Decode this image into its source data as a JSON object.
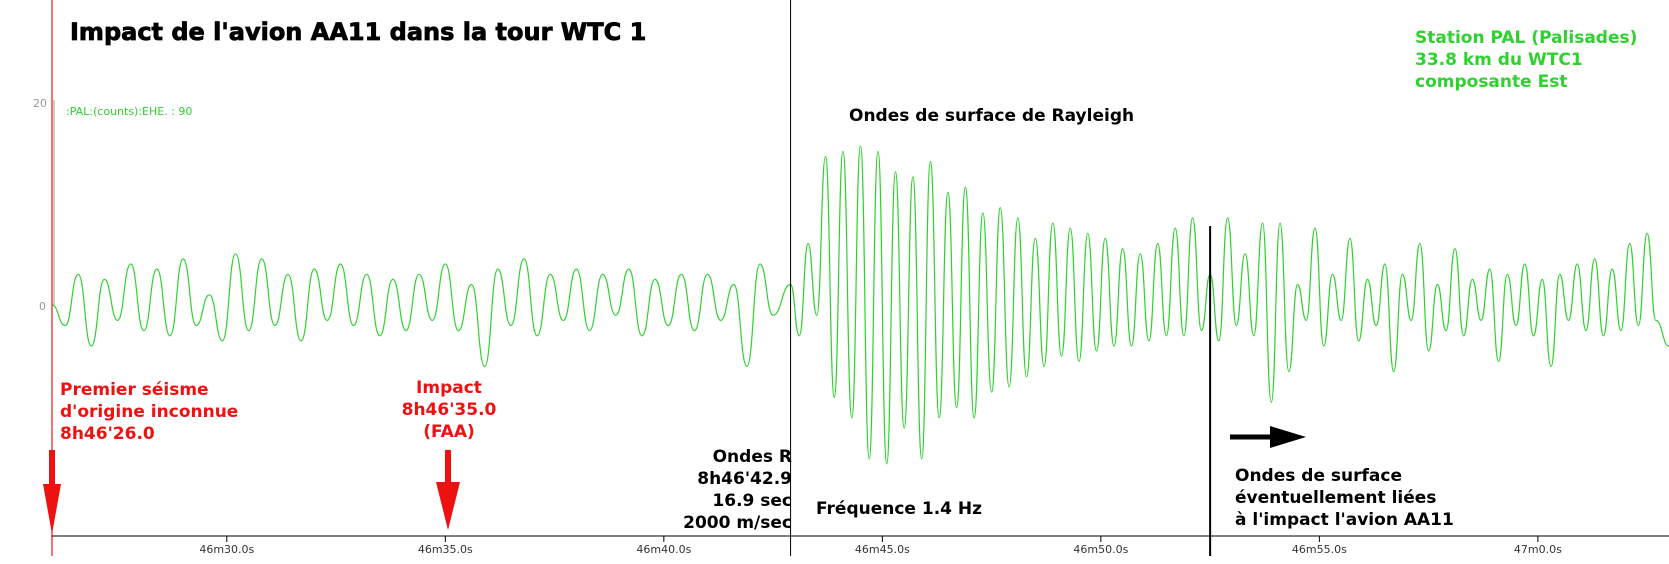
{
  "chart_data": {
    "type": "line",
    "title": "Impact de l'avion AA11 dans la tour WTC 1",
    "station": [
      "Station PAL (Palisades)",
      "33.8 km du WTC1",
      "composante Est"
    ],
    "channel_label": ":PAL:(counts):EHE. : 90",
    "xlabel": "",
    "ylabel": "",
    "x_ticks": [
      "46m30.0s",
      "46m35.0s",
      "46m40.0s",
      "46m45.0s",
      "46m50.0s",
      "46m55.0s",
      "47m0.0s"
    ],
    "x_tick_seconds": [
      30,
      35,
      40,
      45,
      50,
      55,
      60
    ],
    "xlim_seconds": [
      26.0,
      63.0
    ],
    "y_ticks": [
      "20",
      "0"
    ],
    "y_tick_values": [
      20,
      0
    ],
    "ylim": [
      -22,
      30
    ],
    "series": [
      {
        "name": "",
        "color": "#2fd12f",
        "x_seconds": [
          26.0,
          26.3,
          26.6,
          26.9,
          27.2,
          27.5,
          27.8,
          28.1,
          28.4,
          28.7,
          29.0,
          29.3,
          29.6,
          29.9,
          30.2,
          30.5,
          30.8,
          31.1,
          31.4,
          31.7,
          32.0,
          32.3,
          32.6,
          32.9,
          33.2,
          33.5,
          33.8,
          34.1,
          34.4,
          34.7,
          35.0,
          35.3,
          35.6,
          35.9,
          36.2,
          36.5,
          36.8,
          37.1,
          37.4,
          37.7,
          38.0,
          38.3,
          38.6,
          38.9,
          39.2,
          39.5,
          39.8,
          40.1,
          40.4,
          40.7,
          41.0,
          41.3,
          41.6,
          41.9,
          42.2,
          42.5,
          42.9,
          43.1,
          43.3,
          43.5,
          43.7,
          43.9,
          44.1,
          44.3,
          44.5,
          44.7,
          44.9,
          45.1,
          45.3,
          45.5,
          45.7,
          45.9,
          46.1,
          46.3,
          46.5,
          46.7,
          46.9,
          47.1,
          47.3,
          47.5,
          47.7,
          47.9,
          48.1,
          48.3,
          48.5,
          48.7,
          48.9,
          49.1,
          49.3,
          49.5,
          49.7,
          49.9,
          50.1,
          50.3,
          50.5,
          50.7,
          50.9,
          51.1,
          51.3,
          51.5,
          51.7,
          51.9,
          52.1,
          52.3,
          52.5,
          52.7,
          52.9,
          53.1,
          53.3,
          53.5,
          53.7,
          53.9,
          54.1,
          54.3,
          54.5,
          54.7,
          54.9,
          55.1,
          55.3,
          55.5,
          55.7,
          55.9,
          56.1,
          56.3,
          56.5,
          56.7,
          56.9,
          57.1,
          57.3,
          57.5,
          57.7,
          57.9,
          58.1,
          58.3,
          58.5,
          58.7,
          58.9,
          59.1,
          59.3,
          59.5,
          59.7,
          59.9,
          60.1,
          60.3,
          60.5,
          60.7,
          60.9,
          61.1,
          61.3,
          61.5,
          61.7,
          61.9,
          62.1,
          62.3,
          62.5,
          62.7,
          63.0
        ],
        "values": [
          0.0,
          -2.0,
          3.0,
          -4.0,
          2.5,
          -1.5,
          4.0,
          -2.5,
          3.5,
          -3.0,
          4.5,
          -2.0,
          1.0,
          -3.5,
          5.0,
          -2.5,
          4.5,
          -2.0,
          3.0,
          -3.5,
          3.5,
          -1.5,
          4.0,
          -2.0,
          3.0,
          -3.0,
          2.5,
          -2.5,
          3.0,
          -1.5,
          4.0,
          -2.5,
          2.0,
          -6.0,
          3.5,
          -2.0,
          4.5,
          -3.0,
          3.0,
          -1.5,
          3.5,
          -2.5,
          3.0,
          -1.0,
          3.5,
          -3.0,
          2.5,
          -2.0,
          3.0,
          -2.5,
          3.0,
          -1.5,
          2.0,
          -6.0,
          4.0,
          -1.0,
          2.0,
          -3.0,
          6.0,
          -1.0,
          14.5,
          -9.0,
          15.0,
          -11.0,
          15.5,
          -15.0,
          15.0,
          -15.5,
          13.0,
          -12.0,
          12.5,
          -15.0,
          14.0,
          -11.0,
          11.0,
          -10.0,
          11.5,
          -11.0,
          9.0,
          -8.5,
          9.5,
          -8.0,
          8.5,
          -7.0,
          6.5,
          -6.0,
          8.0,
          -5.0,
          7.5,
          -5.5,
          7.0,
          -4.5,
          6.5,
          -4.0,
          5.5,
          -4.0,
          5.0,
          -3.5,
          6.0,
          -3.0,
          7.5,
          -3.0,
          8.5,
          -2.5,
          3.0,
          -3.5,
          8.5,
          -2.0,
          5.0,
          -3.0,
          8.0,
          -9.5,
          8.0,
          -6.5,
          2.0,
          -1.5,
          7.5,
          -4.0,
          3.0,
          -1.5,
          6.5,
          -3.5,
          2.5,
          -2.0,
          4.0,
          -6.5,
          3.0,
          -1.5,
          6.0,
          -4.5,
          2.0,
          -2.5,
          5.5,
          -3.0,
          2.5,
          -1.5,
          3.5,
          -5.5,
          3.0,
          -2.0,
          4.0,
          -3.0,
          2.5,
          -6.0,
          3.0,
          -1.5,
          4.0,
          -2.5,
          4.5,
          -3.0,
          3.5,
          -2.5,
          6.0,
          -2.0,
          7.0,
          -1.5,
          -4.0
        ]
      }
    ],
    "vertical_markers": [
      {
        "x_seconds": 26.0,
        "color": "#ee1111"
      },
      {
        "x_seconds": 42.9,
        "color": "#000000"
      },
      {
        "x_seconds": 52.5,
        "color": "#000000"
      }
    ],
    "annotations": {
      "premier": [
        "Premier séisme",
        "d'origine inconnue",
        "8h46'26.0"
      ],
      "impact": [
        "Impact",
        "8h46'35.0",
        "(FAA)"
      ],
      "rayleigh": "Ondes de surface de Rayleigh",
      "ondes_r": [
        "Ondes R",
        "8h46'42.9",
        "16.9 sec",
        "2000 m/sec"
      ],
      "frequence": "Fréquence 1.4 Hz",
      "surface": [
        "Ondes de surface",
        "éventuellement liées",
        "à l'impact l'avion AA11"
      ]
    },
    "colors": {
      "trace": "#2fd12f",
      "red": "#ee1111",
      "black": "#000000"
    },
    "grid": false,
    "legend": "none"
  }
}
